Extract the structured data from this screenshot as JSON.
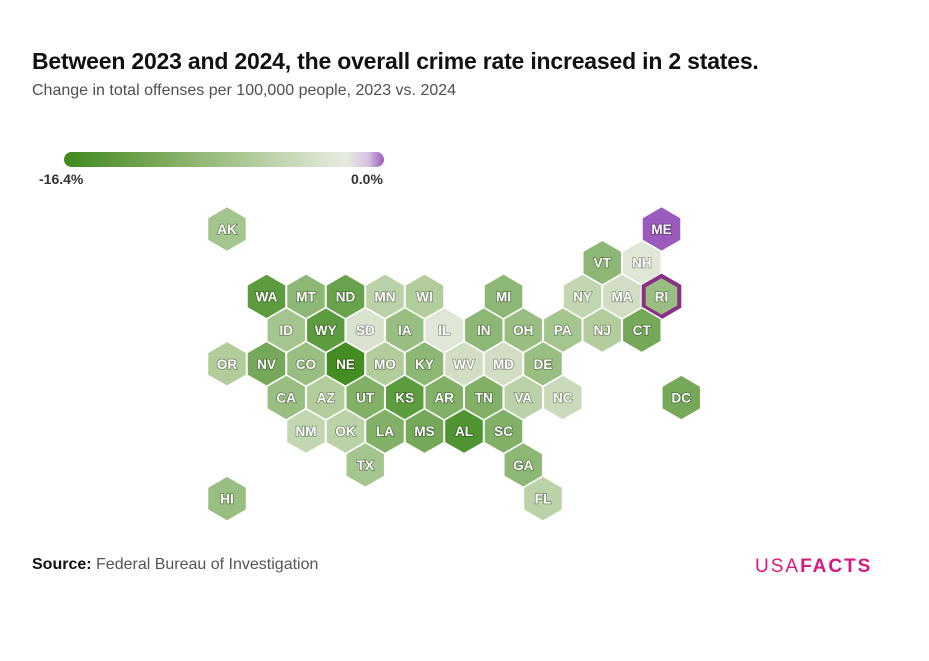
{
  "header": {
    "title": "Between 2023 and 2024, the overall crime rate increased in 2 states.",
    "subtitle": "Change in total offenses per 100,000 people, 2023 vs. 2024"
  },
  "legend": {
    "min_label": "-16.4%",
    "max_label": "0.0%",
    "color_low": "#3f8a1e",
    "color_mid": "#b7cfa2",
    "color_zero": "#e7ebe1",
    "color_high": "#9a5bbd"
  },
  "footer": {
    "source_prefix": "Source:",
    "source_text": "Federal Bureau of Investigation",
    "logo_usa": "USA",
    "logo_facts": "FACTS",
    "logo_color": "#d7197f"
  },
  "chart_data": {
    "type": "hex-tile-map",
    "metric": "Change in total offenses per 100,000 people, 2023 vs. 2024",
    "scale_range": [
      -16.4,
      0.0
    ],
    "states": [
      {
        "abbr": "AK",
        "row": 0,
        "col": 0,
        "value": -8
      },
      {
        "abbr": "ME",
        "row": 0,
        "col": 11,
        "value": 3
      },
      {
        "abbr": "VT",
        "row": 1,
        "col": 9,
        "value": -10
      },
      {
        "abbr": "NH",
        "row": 1,
        "col": 10,
        "value": -1
      },
      {
        "abbr": "WA",
        "row": 2,
        "col": 1,
        "value": -14
      },
      {
        "abbr": "MT",
        "row": 2,
        "col": 2,
        "value": -10
      },
      {
        "abbr": "ND",
        "row": 2,
        "col": 3,
        "value": -13
      },
      {
        "abbr": "MN",
        "row": 2,
        "col": 4,
        "value": -6
      },
      {
        "abbr": "WI",
        "row": 2,
        "col": 5,
        "value": -7
      },
      {
        "abbr": "MI",
        "row": 2,
        "col": 7,
        "value": -10
      },
      {
        "abbr": "NY",
        "row": 2,
        "col": 9,
        "value": -5
      },
      {
        "abbr": "MA",
        "row": 2,
        "col": 10,
        "value": -3
      },
      {
        "abbr": "RI",
        "row": 2,
        "col": 11,
        "value": -9,
        "highlight": true
      },
      {
        "abbr": "ID",
        "row": 3,
        "col": 1,
        "value": -8
      },
      {
        "abbr": "WY",
        "row": 3,
        "col": 2,
        "value": -14
      },
      {
        "abbr": "SD",
        "row": 3,
        "col": 3,
        "value": -2
      },
      {
        "abbr": "IA",
        "row": 3,
        "col": 4,
        "value": -9
      },
      {
        "abbr": "IL",
        "row": 3,
        "col": 5,
        "value": -1
      },
      {
        "abbr": "IN",
        "row": 3,
        "col": 6,
        "value": -10
      },
      {
        "abbr": "OH",
        "row": 3,
        "col": 7,
        "value": -9
      },
      {
        "abbr": "PA",
        "row": 3,
        "col": 8,
        "value": -8
      },
      {
        "abbr": "NJ",
        "row": 3,
        "col": 9,
        "value": -7
      },
      {
        "abbr": "CT",
        "row": 3,
        "col": 10,
        "value": -12
      },
      {
        "abbr": "OR",
        "row": 4,
        "col": 0,
        "value": -7
      },
      {
        "abbr": "NV",
        "row": 4,
        "col": 1,
        "value": -12
      },
      {
        "abbr": "CO",
        "row": 4,
        "col": 2,
        "value": -9
      },
      {
        "abbr": "NE",
        "row": 4,
        "col": 3,
        "value": -16
      },
      {
        "abbr": "MO",
        "row": 4,
        "col": 4,
        "value": -7
      },
      {
        "abbr": "KY",
        "row": 4,
        "col": 5,
        "value": -10
      },
      {
        "abbr": "WV",
        "row": 4,
        "col": 6,
        "value": -3
      },
      {
        "abbr": "MD",
        "row": 4,
        "col": 7,
        "value": -3
      },
      {
        "abbr": "DE",
        "row": 4,
        "col": 8,
        "value": -9
      },
      {
        "abbr": "CA",
        "row": 5,
        "col": 1,
        "value": -9
      },
      {
        "abbr": "AZ",
        "row": 5,
        "col": 2,
        "value": -7
      },
      {
        "abbr": "UT",
        "row": 5,
        "col": 3,
        "value": -11
      },
      {
        "abbr": "KS",
        "row": 5,
        "col": 4,
        "value": -14
      },
      {
        "abbr": "AR",
        "row": 5,
        "col": 5,
        "value": -11
      },
      {
        "abbr": "TN",
        "row": 5,
        "col": 6,
        "value": -11
      },
      {
        "abbr": "VA",
        "row": 5,
        "col": 7,
        "value": -6
      },
      {
        "abbr": "NC",
        "row": 5,
        "col": 8,
        "value": -4
      },
      {
        "abbr": "DC",
        "row": 5,
        "col": 11,
        "value": -12
      },
      {
        "abbr": "NM",
        "row": 6,
        "col": 2,
        "value": -5
      },
      {
        "abbr": "OK",
        "row": 6,
        "col": 3,
        "value": -6
      },
      {
        "abbr": "LA",
        "row": 6,
        "col": 4,
        "value": -11
      },
      {
        "abbr": "MS",
        "row": 6,
        "col": 5,
        "value": -12
      },
      {
        "abbr": "AL",
        "row": 6,
        "col": 6,
        "value": -15
      },
      {
        "abbr": "SC",
        "row": 6,
        "col": 7,
        "value": -11
      },
      {
        "abbr": "TX",
        "row": 7,
        "col": 3,
        "value": -8
      },
      {
        "abbr": "GA",
        "row": 7,
        "col": 7,
        "value": -10
      },
      {
        "abbr": "HI",
        "row": 8,
        "col": 0,
        "value": -9
      },
      {
        "abbr": "FL",
        "row": 8,
        "col": 8,
        "value": -6
      }
    ]
  }
}
